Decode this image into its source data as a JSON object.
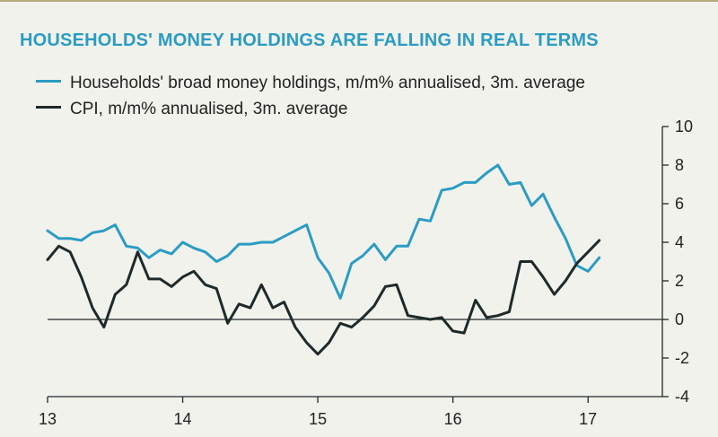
{
  "chart_data": {
    "type": "line",
    "title": "HOUSEHOLDS' MONEY HOLDINGS ARE FALLING IN REAL TERMS",
    "x_tick_labels": [
      "13",
      "14",
      "15",
      "16",
      "17"
    ],
    "x_tick_values": [
      2013,
      2014,
      2015,
      2016,
      2017
    ],
    "xlim": [
      2013,
      2017.55
    ],
    "y_tick_labels": [
      "10",
      "8",
      "6",
      "4",
      "2",
      "0",
      "-2",
      "-4"
    ],
    "y_tick_values": [
      10,
      8,
      6,
      4,
      2,
      0,
      -2,
      -4
    ],
    "ylim": [
      -4,
      10
    ],
    "y_axis_side": "right",
    "zero_line": true,
    "series": [
      {
        "name": "Households' broad money holdings, m/m% annualised, 3m. average",
        "color": "#2b9cc4",
        "x": [
          2013.0,
          2013.083,
          2013.167,
          2013.25,
          2013.333,
          2013.417,
          2013.5,
          2013.583,
          2013.667,
          2013.75,
          2013.833,
          2013.917,
          2014.0,
          2014.083,
          2014.167,
          2014.25,
          2014.333,
          2014.417,
          2014.5,
          2014.583,
          2014.667,
          2014.75,
          2014.833,
          2014.917,
          2015.0,
          2015.083,
          2015.167,
          2015.25,
          2015.333,
          2015.417,
          2015.5,
          2015.583,
          2015.667,
          2015.75,
          2015.833,
          2015.917,
          2016.0,
          2016.083,
          2016.167,
          2016.25,
          2016.333,
          2016.417,
          2016.5,
          2016.583,
          2016.667,
          2016.75,
          2016.833,
          2016.917,
          2017.0,
          2017.083
        ],
        "values": [
          4.6,
          4.2,
          4.2,
          4.1,
          4.5,
          4.6,
          4.9,
          3.8,
          3.7,
          3.2,
          3.6,
          3.4,
          4.0,
          3.7,
          3.5,
          3.0,
          3.3,
          3.9,
          3.9,
          4.0,
          4.0,
          4.3,
          4.6,
          4.9,
          3.2,
          2.4,
          1.1,
          2.9,
          3.3,
          3.9,
          3.1,
          3.8,
          3.8,
          5.2,
          5.1,
          6.7,
          6.8,
          7.1,
          7.1,
          7.6,
          8.0,
          7.0,
          7.1,
          5.9,
          6.5,
          5.3,
          4.2,
          2.8,
          2.5,
          3.2
        ]
      },
      {
        "name": "CPI, m/m% annualised, 3m. average",
        "color": "#1e2a2a",
        "x": [
          2013.0,
          2013.083,
          2013.167,
          2013.25,
          2013.333,
          2013.417,
          2013.5,
          2013.583,
          2013.667,
          2013.75,
          2013.833,
          2013.917,
          2014.0,
          2014.083,
          2014.167,
          2014.25,
          2014.333,
          2014.417,
          2014.5,
          2014.583,
          2014.667,
          2014.75,
          2014.833,
          2014.917,
          2015.0,
          2015.083,
          2015.167,
          2015.25,
          2015.333,
          2015.417,
          2015.5,
          2015.583,
          2015.667,
          2015.75,
          2015.833,
          2015.917,
          2016.0,
          2016.083,
          2016.167,
          2016.25,
          2016.333,
          2016.417,
          2016.5,
          2016.583,
          2016.667,
          2016.75,
          2016.833,
          2016.917,
          2017.0,
          2017.083
        ],
        "values": [
          3.1,
          3.8,
          3.5,
          2.2,
          0.6,
          -0.4,
          1.3,
          1.8,
          3.5,
          2.1,
          2.1,
          1.7,
          2.2,
          2.5,
          1.8,
          1.6,
          -0.2,
          0.8,
          0.6,
          1.8,
          0.6,
          0.9,
          -0.4,
          -1.2,
          -1.8,
          -1.2,
          -0.2,
          -0.4,
          0.1,
          0.7,
          1.7,
          1.8,
          0.2,
          0.1,
          0.0,
          0.1,
          -0.6,
          -0.7,
          1.0,
          0.1,
          0.2,
          0.4,
          3.0,
          3.0,
          2.2,
          1.3,
          2.0,
          2.9,
          3.5,
          4.1
        ]
      }
    ]
  }
}
